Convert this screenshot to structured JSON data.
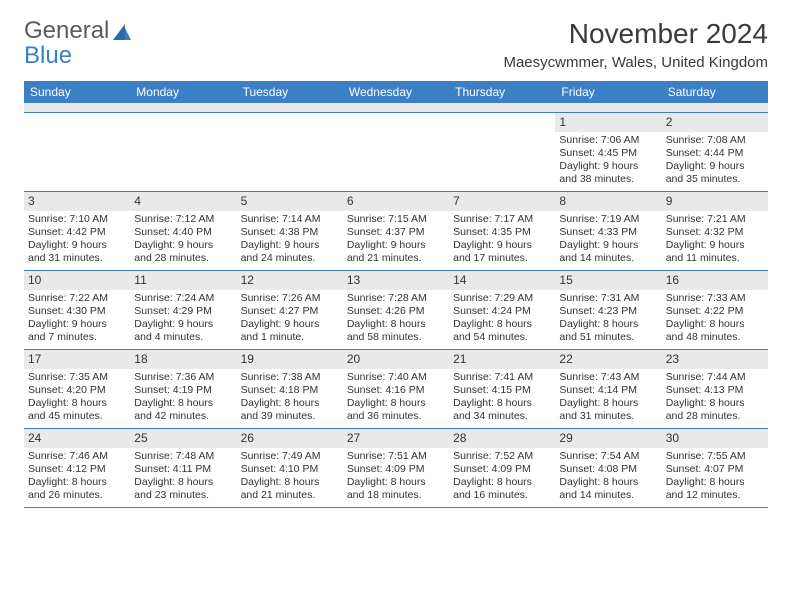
{
  "logo": {
    "line1": "General",
    "line2": "Blue"
  },
  "title": {
    "month": "November 2024",
    "location": "Maesycwmmer, Wales, United Kingdom"
  },
  "colors": {
    "header_bg": "#3b7fc4",
    "header_text": "#ffffff",
    "daynum_bg": "#e9e9e9",
    "border": "#3b7fc4",
    "text": "#333333",
    "logo_gray": "#5a5a5a",
    "logo_blue": "#3b7fc4"
  },
  "typography": {
    "month_fontsize": 28,
    "location_fontsize": 15,
    "dayhead_fontsize": 12,
    "daynum_fontsize": 12,
    "cell_fontsize": 10.5
  },
  "day_headers": [
    "Sunday",
    "Monday",
    "Tuesday",
    "Wednesday",
    "Thursday",
    "Friday",
    "Saturday"
  ],
  "weeks": [
    [
      {
        "day": "",
        "sunrise": "",
        "sunset": "",
        "daylight": ""
      },
      {
        "day": "",
        "sunrise": "",
        "sunset": "",
        "daylight": ""
      },
      {
        "day": "",
        "sunrise": "",
        "sunset": "",
        "daylight": ""
      },
      {
        "day": "",
        "sunrise": "",
        "sunset": "",
        "daylight": ""
      },
      {
        "day": "",
        "sunrise": "",
        "sunset": "",
        "daylight": ""
      },
      {
        "day": "1",
        "sunrise": "Sunrise: 7:06 AM",
        "sunset": "Sunset: 4:45 PM",
        "daylight": "Daylight: 9 hours and 38 minutes."
      },
      {
        "day": "2",
        "sunrise": "Sunrise: 7:08 AM",
        "sunset": "Sunset: 4:44 PM",
        "daylight": "Daylight: 9 hours and 35 minutes."
      }
    ],
    [
      {
        "day": "3",
        "sunrise": "Sunrise: 7:10 AM",
        "sunset": "Sunset: 4:42 PM",
        "daylight": "Daylight: 9 hours and 31 minutes."
      },
      {
        "day": "4",
        "sunrise": "Sunrise: 7:12 AM",
        "sunset": "Sunset: 4:40 PM",
        "daylight": "Daylight: 9 hours and 28 minutes."
      },
      {
        "day": "5",
        "sunrise": "Sunrise: 7:14 AM",
        "sunset": "Sunset: 4:38 PM",
        "daylight": "Daylight: 9 hours and 24 minutes."
      },
      {
        "day": "6",
        "sunrise": "Sunrise: 7:15 AM",
        "sunset": "Sunset: 4:37 PM",
        "daylight": "Daylight: 9 hours and 21 minutes."
      },
      {
        "day": "7",
        "sunrise": "Sunrise: 7:17 AM",
        "sunset": "Sunset: 4:35 PM",
        "daylight": "Daylight: 9 hours and 17 minutes."
      },
      {
        "day": "8",
        "sunrise": "Sunrise: 7:19 AM",
        "sunset": "Sunset: 4:33 PM",
        "daylight": "Daylight: 9 hours and 14 minutes."
      },
      {
        "day": "9",
        "sunrise": "Sunrise: 7:21 AM",
        "sunset": "Sunset: 4:32 PM",
        "daylight": "Daylight: 9 hours and 11 minutes."
      }
    ],
    [
      {
        "day": "10",
        "sunrise": "Sunrise: 7:22 AM",
        "sunset": "Sunset: 4:30 PM",
        "daylight": "Daylight: 9 hours and 7 minutes."
      },
      {
        "day": "11",
        "sunrise": "Sunrise: 7:24 AM",
        "sunset": "Sunset: 4:29 PM",
        "daylight": "Daylight: 9 hours and 4 minutes."
      },
      {
        "day": "12",
        "sunrise": "Sunrise: 7:26 AM",
        "sunset": "Sunset: 4:27 PM",
        "daylight": "Daylight: 9 hours and 1 minute."
      },
      {
        "day": "13",
        "sunrise": "Sunrise: 7:28 AM",
        "sunset": "Sunset: 4:26 PM",
        "daylight": "Daylight: 8 hours and 58 minutes."
      },
      {
        "day": "14",
        "sunrise": "Sunrise: 7:29 AM",
        "sunset": "Sunset: 4:24 PM",
        "daylight": "Daylight: 8 hours and 54 minutes."
      },
      {
        "day": "15",
        "sunrise": "Sunrise: 7:31 AM",
        "sunset": "Sunset: 4:23 PM",
        "daylight": "Daylight: 8 hours and 51 minutes."
      },
      {
        "day": "16",
        "sunrise": "Sunrise: 7:33 AM",
        "sunset": "Sunset: 4:22 PM",
        "daylight": "Daylight: 8 hours and 48 minutes."
      }
    ],
    [
      {
        "day": "17",
        "sunrise": "Sunrise: 7:35 AM",
        "sunset": "Sunset: 4:20 PM",
        "daylight": "Daylight: 8 hours and 45 minutes."
      },
      {
        "day": "18",
        "sunrise": "Sunrise: 7:36 AM",
        "sunset": "Sunset: 4:19 PM",
        "daylight": "Daylight: 8 hours and 42 minutes."
      },
      {
        "day": "19",
        "sunrise": "Sunrise: 7:38 AM",
        "sunset": "Sunset: 4:18 PM",
        "daylight": "Daylight: 8 hours and 39 minutes."
      },
      {
        "day": "20",
        "sunrise": "Sunrise: 7:40 AM",
        "sunset": "Sunset: 4:16 PM",
        "daylight": "Daylight: 8 hours and 36 minutes."
      },
      {
        "day": "21",
        "sunrise": "Sunrise: 7:41 AM",
        "sunset": "Sunset: 4:15 PM",
        "daylight": "Daylight: 8 hours and 34 minutes."
      },
      {
        "day": "22",
        "sunrise": "Sunrise: 7:43 AM",
        "sunset": "Sunset: 4:14 PM",
        "daylight": "Daylight: 8 hours and 31 minutes."
      },
      {
        "day": "23",
        "sunrise": "Sunrise: 7:44 AM",
        "sunset": "Sunset: 4:13 PM",
        "daylight": "Daylight: 8 hours and 28 minutes."
      }
    ],
    [
      {
        "day": "24",
        "sunrise": "Sunrise: 7:46 AM",
        "sunset": "Sunset: 4:12 PM",
        "daylight": "Daylight: 8 hours and 26 minutes."
      },
      {
        "day": "25",
        "sunrise": "Sunrise: 7:48 AM",
        "sunset": "Sunset: 4:11 PM",
        "daylight": "Daylight: 8 hours and 23 minutes."
      },
      {
        "day": "26",
        "sunrise": "Sunrise: 7:49 AM",
        "sunset": "Sunset: 4:10 PM",
        "daylight": "Daylight: 8 hours and 21 minutes."
      },
      {
        "day": "27",
        "sunrise": "Sunrise: 7:51 AM",
        "sunset": "Sunset: 4:09 PM",
        "daylight": "Daylight: 8 hours and 18 minutes."
      },
      {
        "day": "28",
        "sunrise": "Sunrise: 7:52 AM",
        "sunset": "Sunset: 4:09 PM",
        "daylight": "Daylight: 8 hours and 16 minutes."
      },
      {
        "day": "29",
        "sunrise": "Sunrise: 7:54 AM",
        "sunset": "Sunset: 4:08 PM",
        "daylight": "Daylight: 8 hours and 14 minutes."
      },
      {
        "day": "30",
        "sunrise": "Sunrise: 7:55 AM",
        "sunset": "Sunset: 4:07 PM",
        "daylight": "Daylight: 8 hours and 12 minutes."
      }
    ]
  ]
}
